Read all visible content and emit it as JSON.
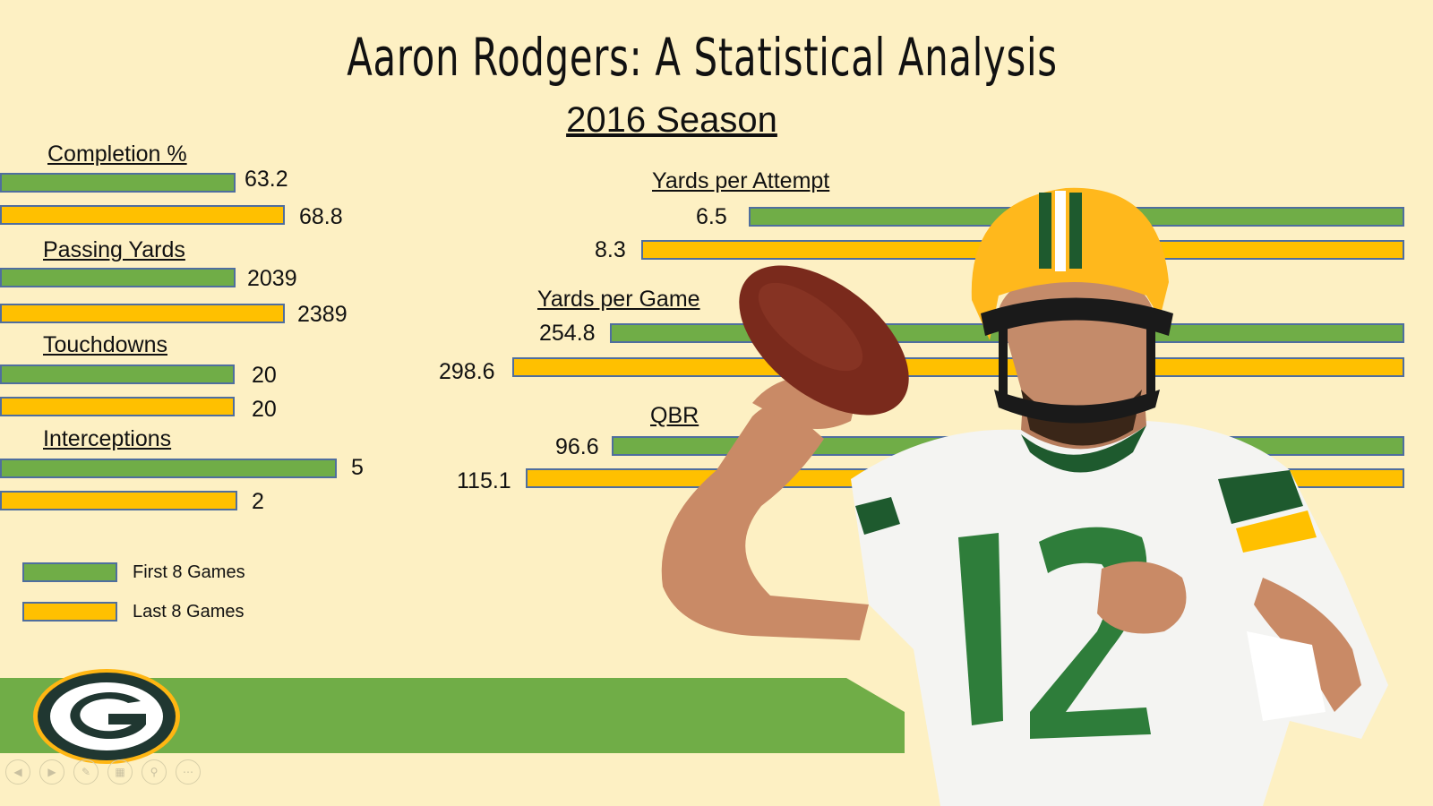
{
  "title": "Aaron Rodgers: A Statistical Analysis",
  "subtitle": "2016 Season",
  "colors": {
    "first": "#70ad47",
    "last": "#ffc000",
    "border": "#4f6e9e",
    "background": "#fdf0c3",
    "banner": "#70ad47"
  },
  "chart_data": {
    "type": "bar",
    "orientation": "horizontal",
    "series": [
      {
        "name": "First 8 Games",
        "color": "#70ad47"
      },
      {
        "name": "Last 8 Games",
        "color": "#ffc000"
      }
    ],
    "stats": [
      {
        "label": "Completion %",
        "values": [
          "63.2",
          "68.8"
        ]
      },
      {
        "label": "Passing Yards",
        "values": [
          "2039",
          "2389"
        ]
      },
      {
        "label": "Touchdowns",
        "values": [
          "20",
          "20"
        ]
      },
      {
        "label": "Interceptions",
        "values": [
          "5",
          "2"
        ]
      },
      {
        "label": "Yards per Attempt",
        "values": [
          "6.5",
          "8.3"
        ]
      },
      {
        "label": "Yards per Game",
        "values": [
          "254.8",
          "298.6"
        ]
      },
      {
        "label": "QBR",
        "values": [
          "96.6",
          "115.1"
        ]
      }
    ]
  },
  "legend": {
    "items": [
      {
        "label": "First 8 Games",
        "color": "#70ad47"
      },
      {
        "label": "Last 8 Games",
        "color": "#ffc000"
      }
    ]
  },
  "icons": {
    "logo": "packers-g-logo-icon",
    "controls": [
      "prev-slide-icon",
      "next-slide-icon",
      "pen-icon",
      "slides-grid-icon",
      "zoom-icon",
      "more-icon"
    ]
  }
}
